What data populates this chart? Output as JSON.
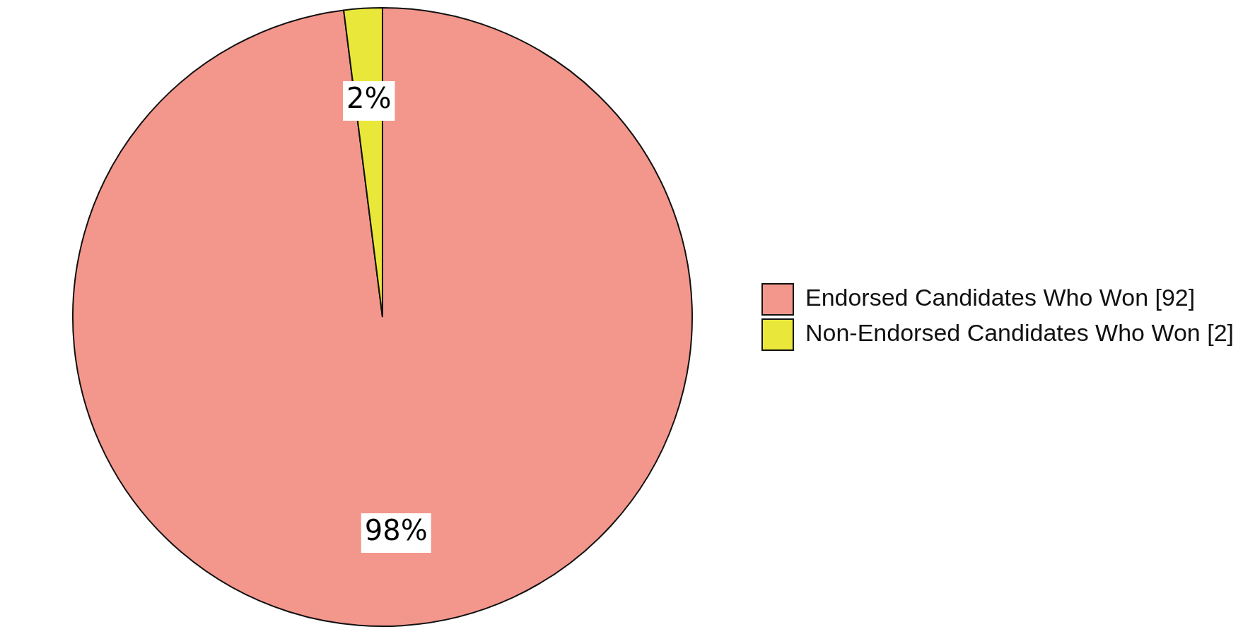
{
  "chart_data": {
    "type": "pie",
    "categories": [
      "Endorsed Candidates Who Won [92]",
      "Non-Endorsed Candidates Who Won [2]"
    ],
    "values": [
      98,
      2
    ],
    "colors": [
      "#f3978c",
      "#e9e83a"
    ],
    "value_labels": [
      "98%",
      "2%"
    ],
    "legend": "right"
  }
}
